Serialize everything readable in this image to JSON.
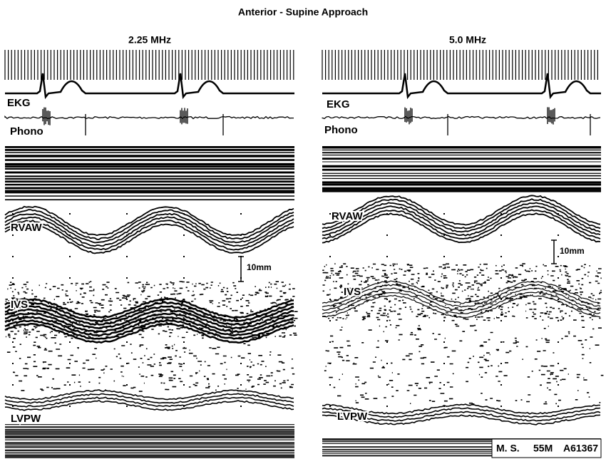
{
  "title": "Anterior - Supine Approach",
  "panels": [
    {
      "frequency": "2.25 MHz",
      "ekg": "EKG",
      "phono": "Phono",
      "rvaw": "RVAW",
      "scale": "10mm",
      "ivs": "IVS",
      "lvpw": "LVPW"
    },
    {
      "frequency": "5.0 MHz",
      "ekg": "EKG",
      "phono": "Phono",
      "rvaw": "RVAW",
      "scale": "10mm",
      "ivs": "IVS",
      "lvpw": "LVPW"
    }
  ],
  "footer": {
    "patient": "M. S.",
    "age_sex": "55M",
    "record": "A61367"
  }
}
